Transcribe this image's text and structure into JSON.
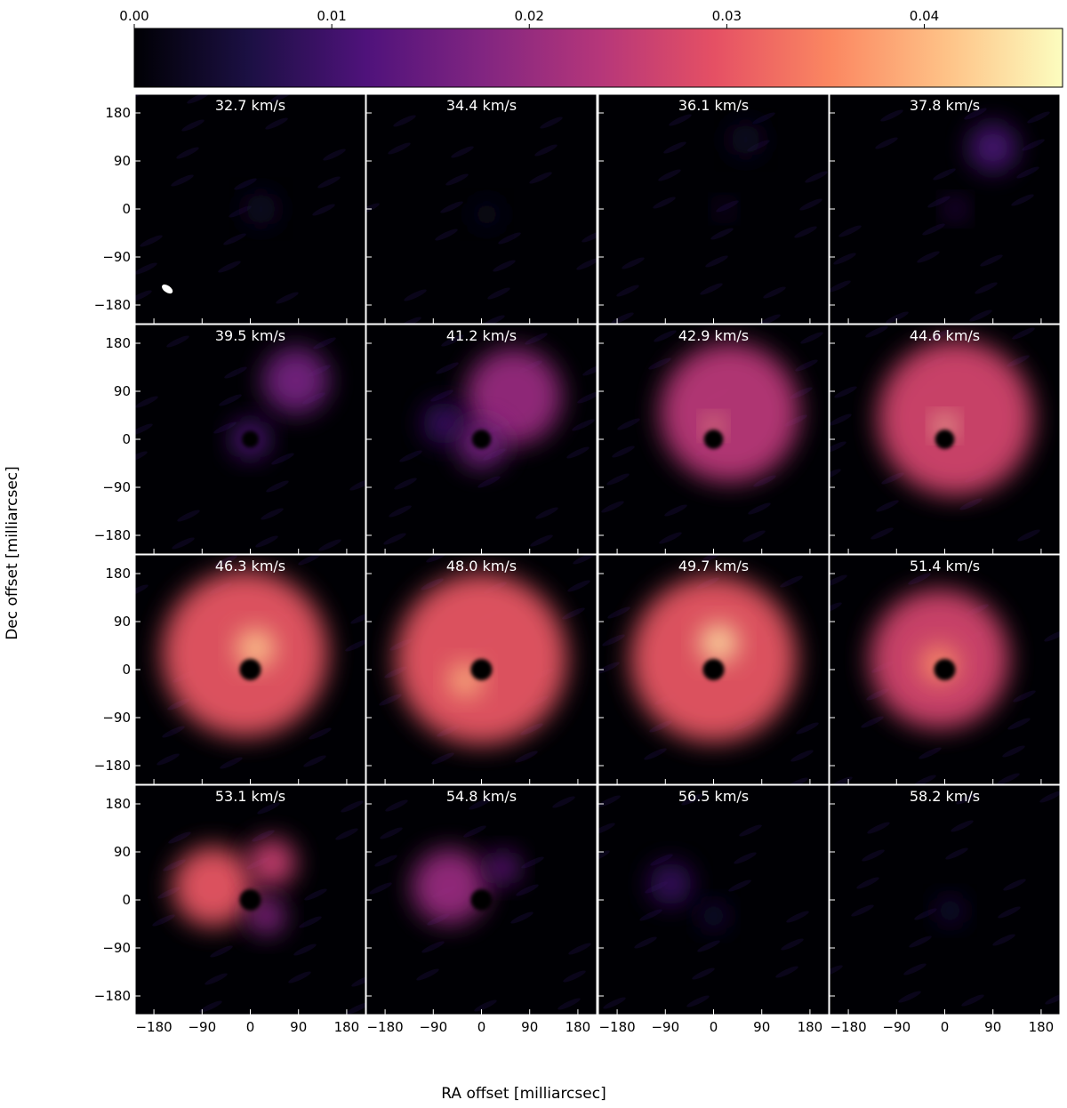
{
  "chart_data": {
    "type": "heatmap",
    "description_kind": "channel_maps",
    "xlabel": "RA offset [milliarcsec]",
    "ylabel": "Dec offset [milliarcsec]",
    "x_ticks": [
      -180,
      -90,
      0,
      90,
      180
    ],
    "y_ticks": [
      180,
      90,
      0,
      -90,
      -180
    ],
    "x_tick_labels": [
      "−180",
      "−90",
      "0",
      "90",
      "180"
    ],
    "y_tick_labels": [
      "180",
      "90",
      "0",
      "−90",
      "−180"
    ],
    "xlim": [
      -215,
      215
    ],
    "ylim": [
      -215,
      215
    ],
    "colorbar": {
      "ticks": [
        0.0,
        0.01,
        0.02,
        0.03,
        0.04
      ],
      "tick_labels": [
        "0.00",
        "0.01",
        "0.02",
        "0.03",
        "0.04"
      ],
      "range": [
        0.0,
        0.047
      ],
      "colormap": "magma",
      "stops": [
        "#000004",
        "#1c1044",
        "#4f127b",
        "#812581",
        "#b5367a",
        "#e55064",
        "#fb8761",
        "#fec287",
        "#fcfdbf"
      ]
    },
    "beam": {
      "x": -155,
      "y": -150,
      "major": 16,
      "minor": 9,
      "angle_deg": 35,
      "panel": 0
    },
    "channels": [
      {
        "velocity": 32.7,
        "label": "32.7 km/s",
        "features": [
          {
            "x": 20,
            "y": 0,
            "r": 30,
            "v": 0.004
          }
        ]
      },
      {
        "velocity": 34.4,
        "label": "34.4 km/s",
        "features": [
          {
            "x": 10,
            "y": -10,
            "r": 25,
            "v": 0.003
          }
        ]
      },
      {
        "velocity": 36.1,
        "label": "36.1 km/s",
        "features": [
          {
            "x": 20,
            "y": 0,
            "r": 15,
            "v": 0.007
          },
          {
            "x": 60,
            "y": 130,
            "r": 30,
            "v": 0.004
          }
        ]
      },
      {
        "velocity": 37.8,
        "label": "37.8 km/s",
        "features": [
          {
            "x": 90,
            "y": 115,
            "r": 45,
            "v": 0.011
          },
          {
            "x": 20,
            "y": 0,
            "r": 18,
            "v": 0.01
          }
        ]
      },
      {
        "velocity": 39.5,
        "label": "39.5 km/s",
        "features": [
          {
            "x": 85,
            "y": 110,
            "r": 62,
            "v": 0.016
          },
          {
            "x": 0,
            "y": 0,
            "r": 35,
            "v": 0.012
          }
        ],
        "hole": {
          "x": 0,
          "y": 0,
          "r": 16
        }
      },
      {
        "velocity": 41.2,
        "label": "41.2 km/s",
        "features": [
          {
            "x": 60,
            "y": 80,
            "r": 90,
            "v": 0.02
          },
          {
            "x": -70,
            "y": 30,
            "r": 40,
            "v": 0.009
          },
          {
            "x": 0,
            "y": -10,
            "r": 45,
            "v": 0.016
          }
        ],
        "hole": {
          "x": 0,
          "y": 0,
          "r": 18
        }
      },
      {
        "velocity": 42.9,
        "label": "42.9 km/s",
        "features": [
          {
            "x": 30,
            "y": 50,
            "r": 130,
            "v": 0.024
          },
          {
            "x": 0,
            "y": 25,
            "r": 16,
            "v": 0.04
          }
        ],
        "hole": {
          "x": 0,
          "y": 0,
          "r": 18
        }
      },
      {
        "velocity": 44.6,
        "label": "44.6 km/s",
        "features": [
          {
            "x": 20,
            "y": 40,
            "r": 145,
            "v": 0.027
          },
          {
            "x": 0,
            "y": 25,
            "r": 18,
            "v": 0.045
          }
        ],
        "hole": {
          "x": 0,
          "y": 0,
          "r": 18
        }
      },
      {
        "velocity": 46.3,
        "label": "46.3 km/s",
        "features": [
          {
            "x": -10,
            "y": 30,
            "r": 155,
            "v": 0.03
          },
          {
            "x": 10,
            "y": 40,
            "r": 35,
            "v": 0.042
          }
        ],
        "hole": {
          "x": 0,
          "y": 0,
          "r": 20
        }
      },
      {
        "velocity": 48.0,
        "label": "48.0 km/s",
        "features": [
          {
            "x": 0,
            "y": 20,
            "r": 160,
            "v": 0.03
          },
          {
            "x": -30,
            "y": -20,
            "r": 30,
            "v": 0.04
          }
        ],
        "hole": {
          "x": 0,
          "y": 0,
          "r": 20
        }
      },
      {
        "velocity": 49.7,
        "label": "49.7 km/s",
        "features": [
          {
            "x": 0,
            "y": 20,
            "r": 155,
            "v": 0.03
          },
          {
            "x": 10,
            "y": 50,
            "r": 35,
            "v": 0.044
          }
        ],
        "hole": {
          "x": 0,
          "y": 0,
          "r": 20
        }
      },
      {
        "velocity": 51.4,
        "label": "51.4 km/s",
        "features": [
          {
            "x": -10,
            "y": 20,
            "r": 130,
            "v": 0.027
          },
          {
            "x": -10,
            "y": 10,
            "r": 35,
            "v": 0.036
          }
        ],
        "hole": {
          "x": 0,
          "y": 0,
          "r": 20
        }
      },
      {
        "velocity": 53.1,
        "label": "53.1 km/s",
        "features": [
          {
            "x": -70,
            "y": 25,
            "r": 75,
            "v": 0.03
          },
          {
            "x": 40,
            "y": 70,
            "r": 45,
            "v": 0.026
          },
          {
            "x": 30,
            "y": -30,
            "r": 35,
            "v": 0.018
          }
        ],
        "hole": {
          "x": 0,
          "y": 0,
          "r": 20
        }
      },
      {
        "velocity": 54.8,
        "label": "54.8 km/s",
        "features": [
          {
            "x": -60,
            "y": 25,
            "r": 70,
            "v": 0.02
          },
          {
            "x": 40,
            "y": 60,
            "r": 30,
            "v": 0.014
          }
        ],
        "hole": {
          "x": 0,
          "y": 0,
          "r": 20
        }
      },
      {
        "velocity": 56.5,
        "label": "56.5 km/s",
        "features": [
          {
            "x": -80,
            "y": 30,
            "r": 40,
            "v": 0.009
          },
          {
            "x": 0,
            "y": -30,
            "r": 25,
            "v": 0.006
          }
        ]
      },
      {
        "velocity": 58.2,
        "label": "58.2 km/s",
        "features": [
          {
            "x": 10,
            "y": -20,
            "r": 25,
            "v": 0.006
          }
        ]
      }
    ]
  }
}
